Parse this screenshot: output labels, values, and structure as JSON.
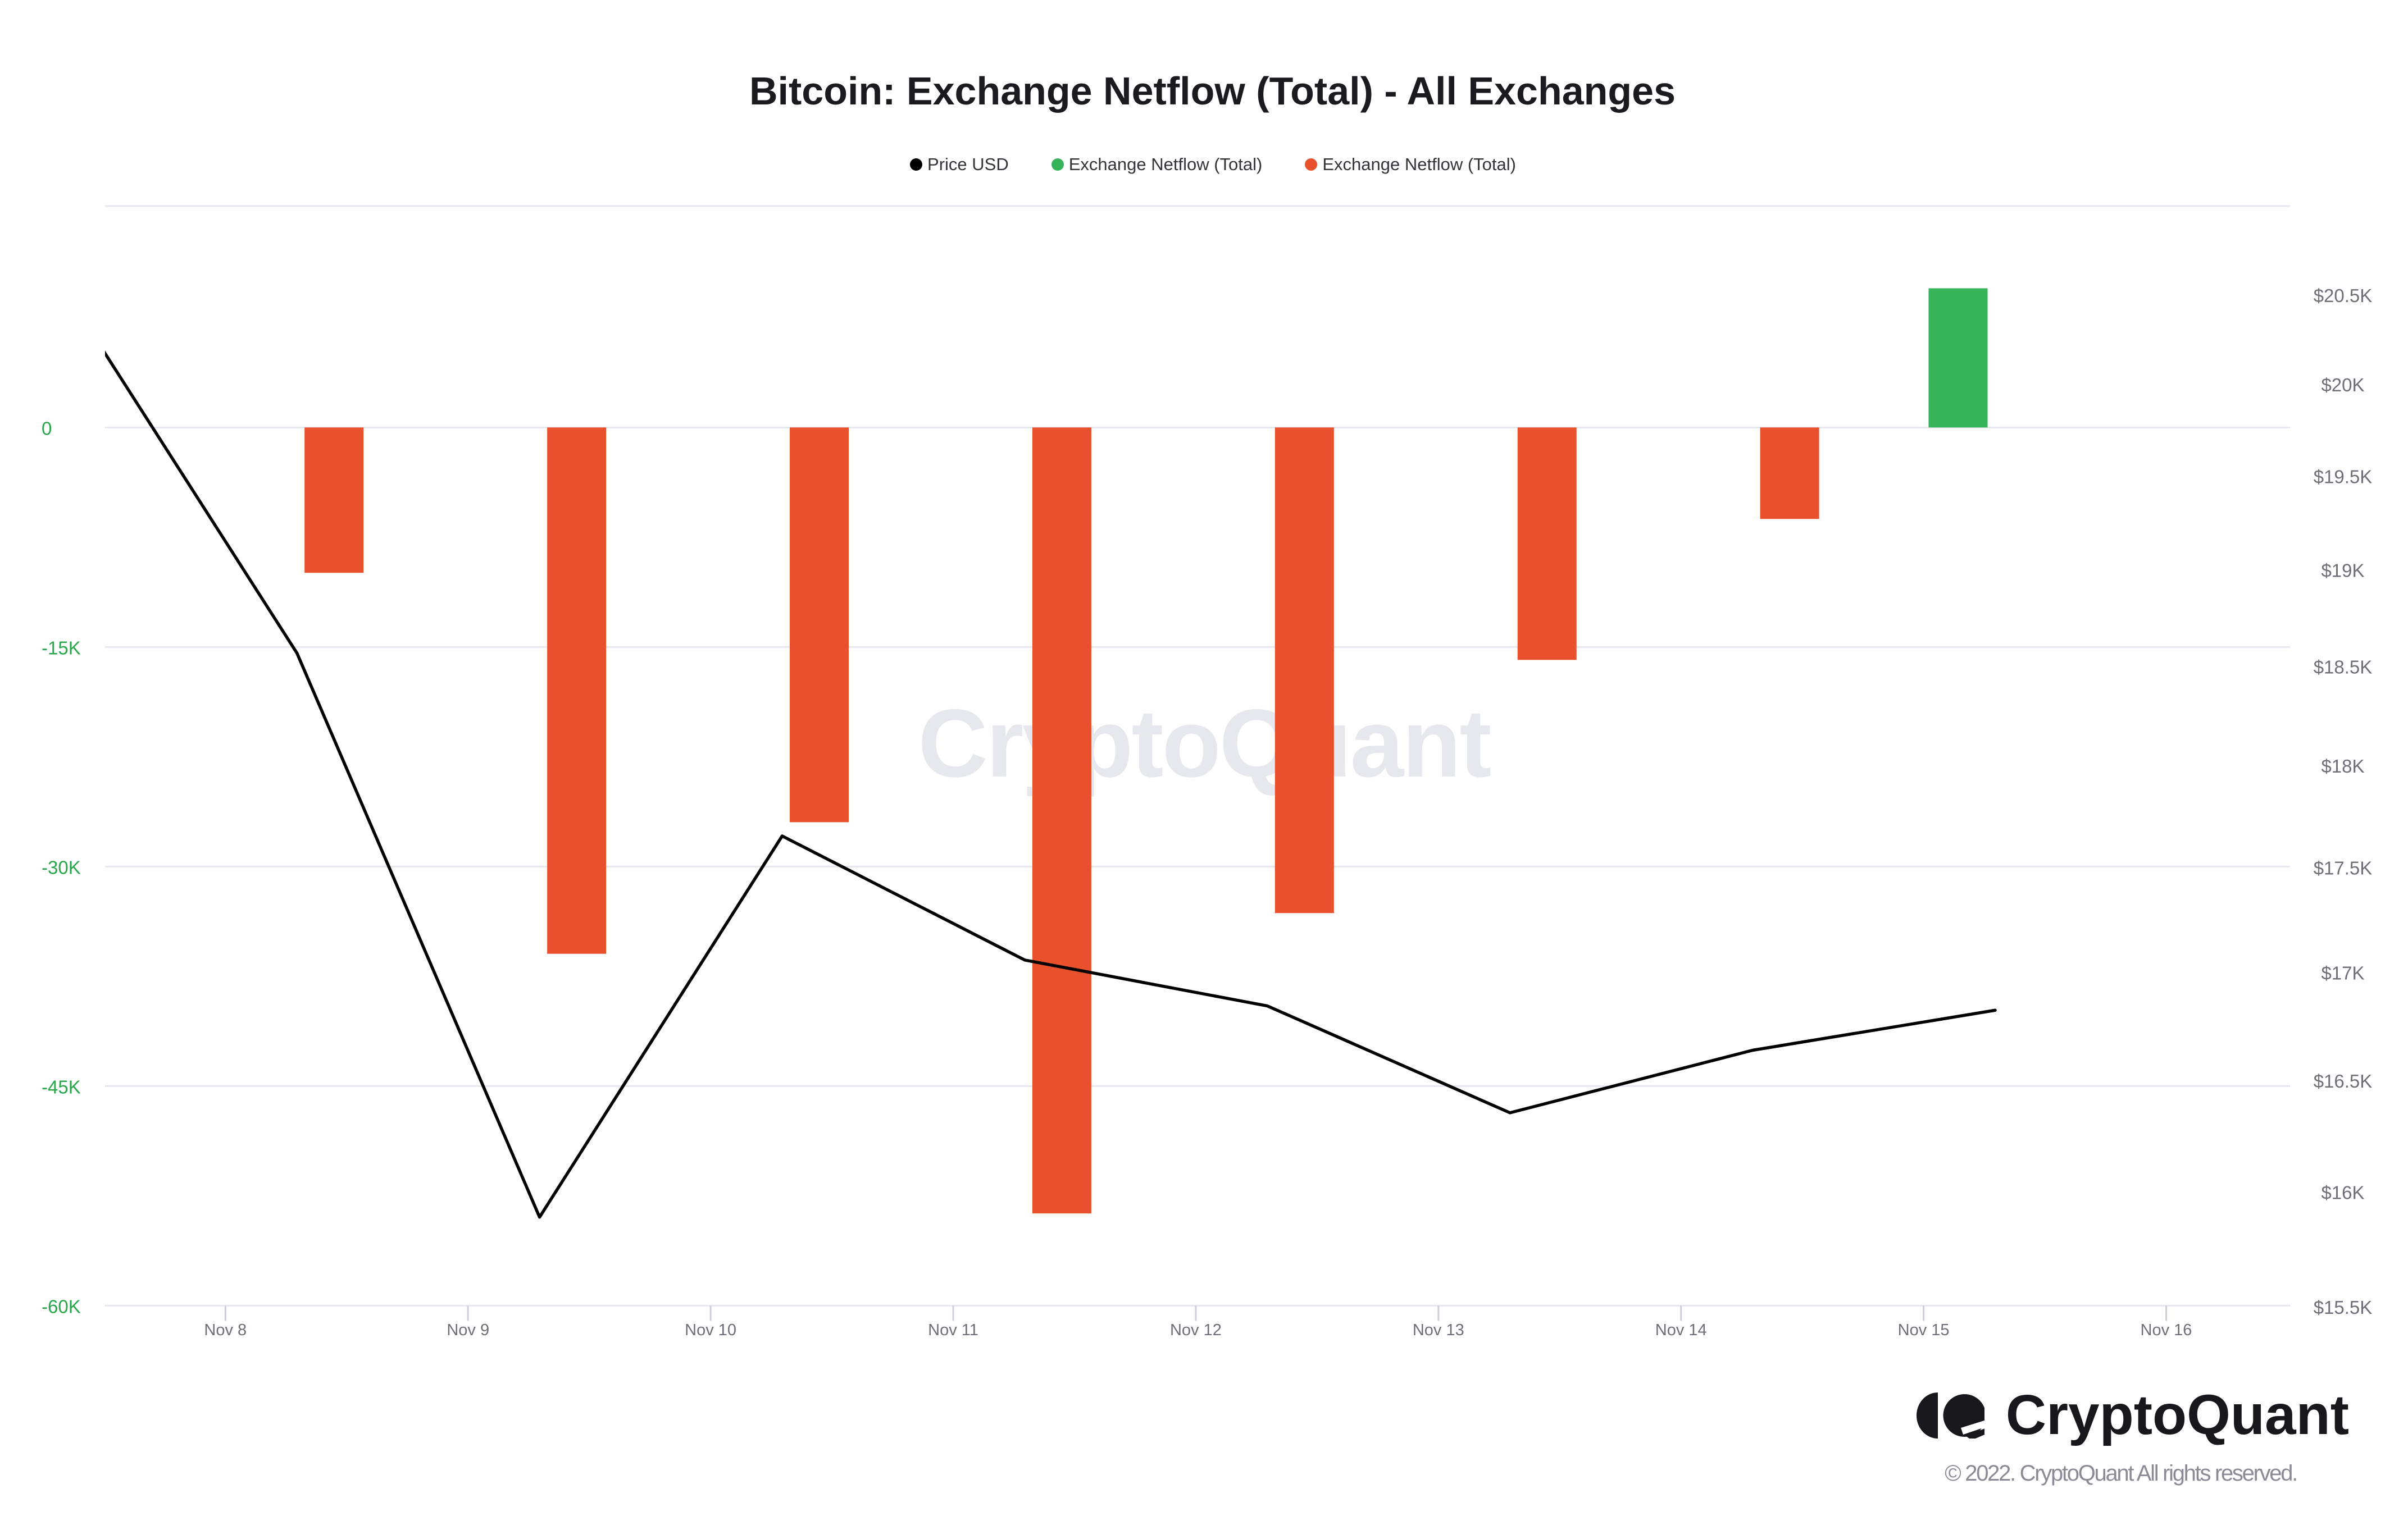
{
  "title": "Bitcoin: Exchange Netflow (Total) - All Exchanges",
  "legend": [
    {
      "label": "Price USD",
      "color": "#000000"
    },
    {
      "label": "Exchange Netflow (Total)",
      "color": "#36b45a"
    },
    {
      "label": "Exchange Netflow (Total)",
      "color": "#e8512c"
    }
  ],
  "watermark": "CryptoQuant",
  "footer": {
    "logo_text": "CryptoQuant",
    "copyright": "© 2022. CryptoQuant All rights reserved."
  },
  "chart_data": {
    "type": "bar",
    "title": "Bitcoin: Exchange Netflow (Total) - All Exchanges",
    "xlabel": "",
    "ylabel_left": "Exchange Netflow (Total)",
    "ylabel_right": "Price USD",
    "x_tick_labels": [
      "Nov 8",
      "Nov 9",
      "Nov 10",
      "Nov 11",
      "Nov 12",
      "Nov 13",
      "Nov 14",
      "Nov 15",
      "Nov 16"
    ],
    "left_axis": {
      "scale": "linear",
      "tick_labels": [
        "0",
        "-15K",
        "-30K",
        "-45K",
        "-60K"
      ],
      "tick_values": [
        0,
        -15000,
        -30000,
        -45000,
        -60000
      ],
      "min": -60000,
      "max": 15000,
      "label_color": "#27a74a"
    },
    "right_axis": {
      "scale": "log",
      "tick_labels": [
        "$20.5K",
        "$20K",
        "$19.5K",
        "$19K",
        "$18.5K",
        "$18K",
        "$17.5K",
        "$17K",
        "$16.5K",
        "$16K",
        "$15.5K"
      ],
      "tick_values": [
        20500,
        20000,
        19500,
        19000,
        18500,
        18000,
        17500,
        17000,
        16500,
        16000,
        15500
      ],
      "label_color": "#6f6f78"
    },
    "grid": "horizontal",
    "legend_position": "top",
    "series": [
      {
        "name": "Price USD",
        "type": "line",
        "color": "#000000",
        "points": [
          {
            "date": "Nov 7",
            "price": 20620
          },
          {
            "date": "Nov 8",
            "price": 18570
          },
          {
            "date": "Nov 9",
            "price": 15890
          },
          {
            "date": "Nov 10",
            "price": 17655
          },
          {
            "date": "Nov 11",
            "price": 17060
          },
          {
            "date": "Nov 12",
            "price": 16845
          },
          {
            "date": "Nov 13",
            "price": 16355
          },
          {
            "date": "Nov 14",
            "price": 16640
          },
          {
            "date": "Nov 15",
            "price": 16825
          }
        ]
      },
      {
        "name": "Exchange Netflow (Total)",
        "type": "column",
        "color": "#36b45a",
        "points": [
          {
            "date": "Nov 15",
            "value": 9510
          }
        ]
      },
      {
        "name": "Exchange Netflow (Total)",
        "type": "column",
        "color": "#e8512c",
        "points": [
          {
            "date": "Nov 8",
            "value": -9930
          },
          {
            "date": "Nov 9",
            "value": -35960
          },
          {
            "date": "Nov 10",
            "value": -26970
          },
          {
            "date": "Nov 11",
            "value": -53700
          },
          {
            "date": "Nov 12",
            "value": -33180
          },
          {
            "date": "Nov 13",
            "value": -15880
          },
          {
            "date": "Nov 14",
            "value": -6250
          }
        ]
      }
    ]
  }
}
